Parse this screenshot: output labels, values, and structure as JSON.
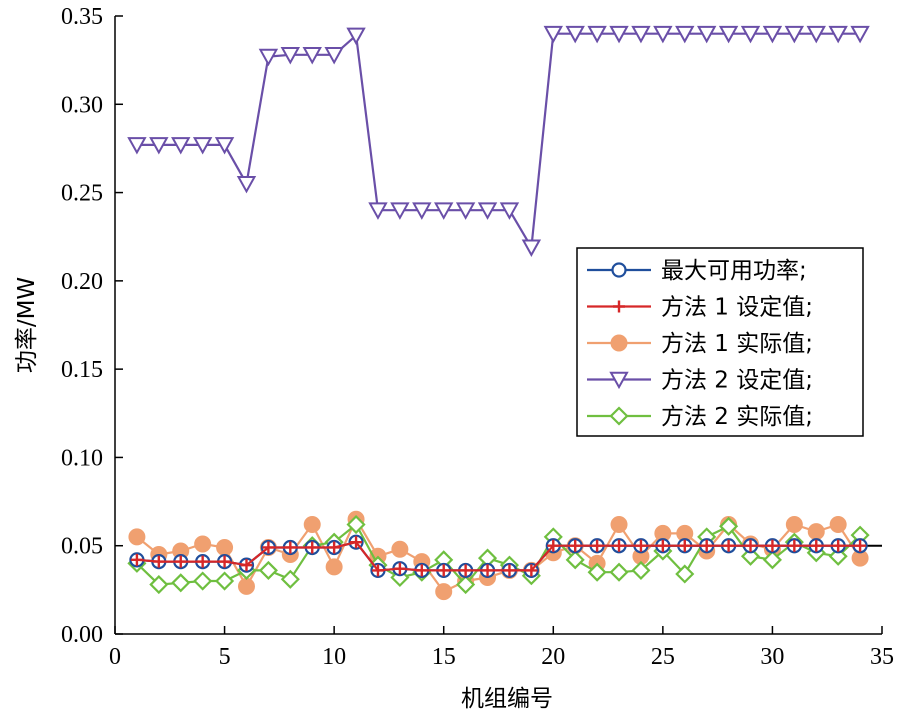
{
  "chart_data": {
    "type": "line",
    "xlabel": "机组编号",
    "ylabel": "功率/MW",
    "xlim": [
      0,
      35
    ],
    "ylim": [
      0,
      0.35
    ],
    "xticks": [
      0,
      5,
      10,
      15,
      20,
      25,
      30,
      35
    ],
    "yticks": [
      0,
      0.05,
      0.1,
      0.15,
      0.2,
      0.25,
      0.3,
      0.35
    ],
    "xtick_labels": [
      "0",
      "5",
      "10",
      "15",
      "20",
      "25",
      "30",
      "35"
    ],
    "ytick_labels": [
      "0.00",
      "0.05",
      "0.10",
      "0.15",
      "0.20",
      "0.25",
      "0.30",
      "0.35"
    ],
    "grid": false,
    "legend_position": "right",
    "x": [
      1,
      2,
      3,
      4,
      5,
      6,
      7,
      8,
      9,
      10,
      11,
      12,
      13,
      14,
      15,
      16,
      17,
      18,
      19,
      20,
      21,
      22,
      23,
      24,
      25,
      26,
      27,
      28,
      29,
      30,
      31,
      32,
      33,
      34
    ],
    "reference_line": {
      "y": 0.05,
      "x_from": 20,
      "x_to": 35,
      "color": "#000000"
    },
    "series": [
      {
        "name": "最大可用功率;",
        "color": "#1f4e9c",
        "marker": "circle",
        "values": [
          0.042,
          0.041,
          0.041,
          0.041,
          0.041,
          0.039,
          0.049,
          0.049,
          0.049,
          0.049,
          0.052,
          0.036,
          0.037,
          0.036,
          0.036,
          0.036,
          0.036,
          0.036,
          0.036,
          0.05,
          0.05,
          0.05,
          0.05,
          0.05,
          0.05,
          0.05,
          0.05,
          0.05,
          0.05,
          0.05,
          0.05,
          0.05,
          0.05,
          0.05
        ]
      },
      {
        "name": "方法 1 设定值;",
        "color": "#d62728",
        "marker": "plus",
        "values": [
          0.042,
          0.041,
          0.041,
          0.041,
          0.041,
          0.039,
          0.049,
          0.049,
          0.049,
          0.049,
          0.052,
          0.036,
          0.037,
          0.036,
          0.036,
          0.036,
          0.036,
          0.036,
          0.036,
          0.05,
          0.05,
          0.05,
          0.05,
          0.05,
          0.05,
          0.05,
          0.05,
          0.05,
          0.05,
          0.05,
          0.05,
          0.05,
          0.05,
          0.05
        ]
      },
      {
        "name": "方法 1 实际值;",
        "color": "#f0a070",
        "marker": "filled-circle",
        "values": [
          0.055,
          0.045,
          0.047,
          0.051,
          0.049,
          0.027,
          0.049,
          0.045,
          0.062,
          0.038,
          0.065,
          0.044,
          0.048,
          0.041,
          0.024,
          0.03,
          0.032,
          0.036,
          0.036,
          0.046,
          0.05,
          0.04,
          0.062,
          0.044,
          0.057,
          0.057,
          0.047,
          0.062,
          0.051,
          0.048,
          0.062,
          0.058,
          0.062,
          0.043
        ]
      },
      {
        "name": "方法 2 设定值;",
        "color": "#6a4fa8",
        "marker": "triangle-down",
        "values": [
          0.277,
          0.277,
          0.277,
          0.277,
          0.277,
          0.255,
          0.327,
          0.328,
          0.328,
          0.328,
          0.339,
          0.24,
          0.24,
          0.24,
          0.24,
          0.24,
          0.24,
          0.24,
          0.219,
          0.34,
          0.34,
          0.34,
          0.34,
          0.34,
          0.34,
          0.34,
          0.34,
          0.34,
          0.34,
          0.34,
          0.34,
          0.34,
          0.34,
          0.34
        ]
      },
      {
        "name": "方法 2 实际值;",
        "color": "#6fbf40",
        "marker": "diamond",
        "values": [
          0.04,
          0.028,
          0.029,
          0.03,
          0.03,
          0.036,
          0.036,
          0.031,
          0.05,
          0.052,
          0.062,
          0.039,
          0.032,
          0.035,
          0.042,
          0.028,
          0.043,
          0.039,
          0.033,
          0.055,
          0.042,
          0.035,
          0.035,
          0.036,
          0.047,
          0.034,
          0.055,
          0.061,
          0.044,
          0.042,
          0.052,
          0.046,
          0.044,
          0.056
        ]
      }
    ]
  }
}
